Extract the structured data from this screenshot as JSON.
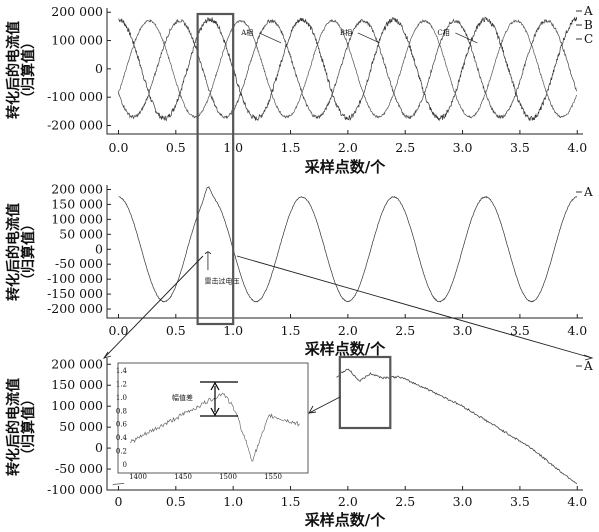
{
  "chart_data": [
    {
      "type": "line",
      "panel": "top",
      "ylabel_line1": "转化后的电流值",
      "ylabel_line2": "（归算值）",
      "xlabel": "采样点数/个",
      "xlim": [
        -0.1,
        4.05
      ],
      "ylim": [
        -230000,
        215000
      ],
      "x_ticks": [
        "0.0",
        "0.5",
        "1.0",
        "1.5",
        "2.0",
        "2.5",
        "3.0",
        "3.5",
        "4.0"
      ],
      "y_ticks": [
        {
          "value": 200000,
          "label": "200 000"
        },
        {
          "value": 100000,
          "label": "100 000"
        },
        {
          "value": 0,
          "label": "0"
        },
        {
          "value": -100000,
          "label": "-100 000"
        },
        {
          "value": -200000,
          "label": "-200 000"
        }
      ],
      "legend": [
        "A",
        "B",
        "C"
      ],
      "legend_position": "top-right",
      "series": [
        {
          "name": "A",
          "amplitude": 175000,
          "period": 0.8,
          "peak_x": 0.8,
          "noise": "high",
          "x": [
            0.0,
            0.2,
            0.4,
            0.6,
            0.8
          ],
          "values": [
            -175000,
            0,
            175000,
            0,
            -175000
          ]
        },
        {
          "name": "B",
          "amplitude": 170000,
          "period": 0.8,
          "peak_x": 0.533,
          "noise": "medium"
        },
        {
          "name": "C",
          "amplitude": 170000,
          "period": 0.8,
          "peak_x": 0.267,
          "noise": "low"
        }
      ],
      "annotations": [
        {
          "text": "A相",
          "x": 1.07,
          "y": 120000
        },
        {
          "text": "B相",
          "x": 1.93,
          "y": 120000
        },
        {
          "text": "C相",
          "x": 2.78,
          "y": 120000
        }
      ],
      "zoom_box_x": [
        0.69,
        1.0
      ],
      "grid": false
    },
    {
      "type": "line",
      "panel": "middle",
      "ylabel_line1": "转化后的电流值",
      "ylabel_line2": "（归算值）",
      "xlabel": "采样点数/个",
      "xlim": [
        -0.1,
        4.05
      ],
      "ylim": [
        -230000,
        215000
      ],
      "x_ticks": [
        "0.0",
        "0.5",
        "1.0",
        "1.5",
        "2.0",
        "2.5",
        "3.0",
        "3.5",
        "4.0"
      ],
      "y_ticks": [
        {
          "value": 200000,
          "label": "200 000"
        },
        {
          "value": 150000,
          "label": "150 000"
        },
        {
          "value": 100000,
          "label": "100 000"
        },
        {
          "value": 50000,
          "label": "50 000"
        },
        {
          "value": 0,
          "label": "0"
        },
        {
          "value": -50000,
          "label": "-50 000"
        },
        {
          "value": -100000,
          "label": "-100 000"
        },
        {
          "value": -150000,
          "label": "-150 000"
        },
        {
          "value": -200000,
          "label": "-200 000"
        }
      ],
      "legend": [
        "A"
      ],
      "legend_position": "top-right",
      "series": [
        {
          "name": "A",
          "amplitude": 175000,
          "period": 0.8,
          "peak_x": 0.8,
          "spike_x": 0.78,
          "spike_value": 195000
        }
      ],
      "annotations": [
        {
          "text": "雷击过电压",
          "x": 0.75,
          "y": -115000
        }
      ],
      "zoom_box_x": [
        0.69,
        1.0
      ],
      "grid": false
    },
    {
      "type": "line",
      "panel": "bottom",
      "ylabel_line1": "转化后的电流值",
      "ylabel_line2": "（归算值）",
      "xlabel": "采样点数/个",
      "xlim": [
        -0.1,
        4.05
      ],
      "ylim": [
        -100000,
        215000
      ],
      "x_ticks": [
        "0",
        "0.5",
        "1.0",
        "1.5",
        "2.0",
        "2.5",
        "3.0",
        "3.5",
        "4.0"
      ],
      "y_ticks": [
        {
          "value": 200000,
          "label": "200 000"
        },
        {
          "value": 150000,
          "label": "150 000"
        },
        {
          "value": 100000,
          "label": "100 000"
        },
        {
          "value": 50000,
          "label": "50 000"
        },
        {
          "value": 0,
          "label": "0"
        },
        {
          "value": -50000,
          "label": "-50 000"
        },
        {
          "value": -100000,
          "label": "-100 000"
        }
      ],
      "legend": [
        "A"
      ],
      "legend_position": "top-right",
      "series": [
        {
          "name": "A",
          "x": [
            1.9,
            2.0,
            2.1,
            2.2,
            2.3,
            2.45,
            2.7,
            3.0,
            3.3,
            3.6,
            3.85,
            4.0
          ],
          "values": [
            170000,
            190000,
            160000,
            178000,
            168000,
            170000,
            140000,
            100000,
            50000,
            0,
            -55000,
            -85000
          ]
        }
      ],
      "inset": {
        "annotation": "幅值差",
        "tick_labels_y": [
          "1.4",
          "1.2",
          "1.0",
          "0.8",
          "0.6",
          "0.4",
          "0.2",
          "0"
        ],
        "tick_labels_x": [
          "1400",
          "1450",
          "1500",
          "1550"
        ]
      },
      "zoom_box_x": [
        1.93,
        2.37
      ],
      "grid": false
    }
  ]
}
